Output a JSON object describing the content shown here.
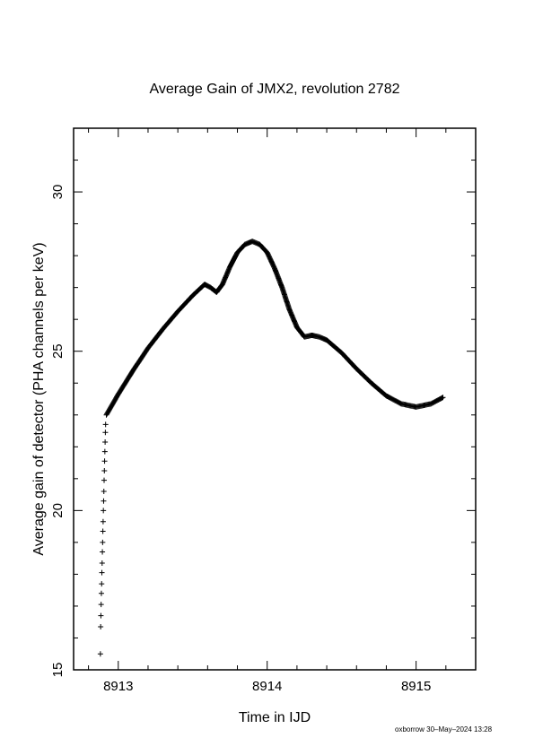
{
  "chart_data": {
    "type": "scatter",
    "marker": "+",
    "title": "Average Gain of JMX2, revolution 2782",
    "xlabel": "Time in IJD",
    "ylabel": "Average gain of detector (PHA channels per keV)",
    "xlim": [
      8912.7,
      8915.4
    ],
    "ylim": [
      15,
      32
    ],
    "xticks": [
      8913,
      8914,
      8915
    ],
    "xtick_labels": [
      "8913",
      "8914",
      "8915"
    ],
    "yticks": [
      15,
      20,
      25,
      30
    ],
    "ytick_labels": [
      "15",
      "20",
      "25",
      "30"
    ],
    "grid": false,
    "colors": {
      "marker": "#000000",
      "frame": "#000000",
      "background": "#ffffff"
    },
    "series": [
      {
        "rising_segment": {
          "x_start": 8912.88,
          "x_end": 8912.915,
          "y": [
            15.5,
            16.35,
            16.7,
            17.05,
            17.4,
            17.7,
            18.05,
            18.35,
            18.7,
            19.0,
            19.35,
            19.65,
            20.0,
            20.3,
            20.6,
            20.95,
            21.25,
            21.55,
            21.85,
            22.15,
            22.45,
            22.7
          ]
        },
        "x": [
          8912.92,
          8913.0,
          8913.1,
          8913.2,
          8913.3,
          8913.4,
          8913.5,
          8913.58,
          8913.62,
          8913.66,
          8913.7,
          8913.75,
          8913.8,
          8913.85,
          8913.9,
          8913.95,
          8914.0,
          8914.05,
          8914.1,
          8914.15,
          8914.2,
          8914.25,
          8914.3,
          8914.35,
          8914.4,
          8914.5,
          8914.6,
          8914.7,
          8914.8,
          8914.9,
          8915.0,
          8915.1,
          8915.18
        ],
        "y": [
          23.0,
          23.65,
          24.4,
          25.1,
          25.7,
          26.25,
          26.75,
          27.1,
          27.0,
          26.85,
          27.1,
          27.65,
          28.1,
          28.35,
          28.45,
          28.35,
          28.1,
          27.6,
          27.0,
          26.3,
          25.75,
          25.45,
          25.5,
          25.45,
          25.35,
          24.95,
          24.45,
          24.0,
          23.6,
          23.35,
          23.25,
          23.35,
          23.55
        ]
      }
    ]
  },
  "footer": {
    "credit": "oxborrow 30–May–2024 13:28"
  }
}
